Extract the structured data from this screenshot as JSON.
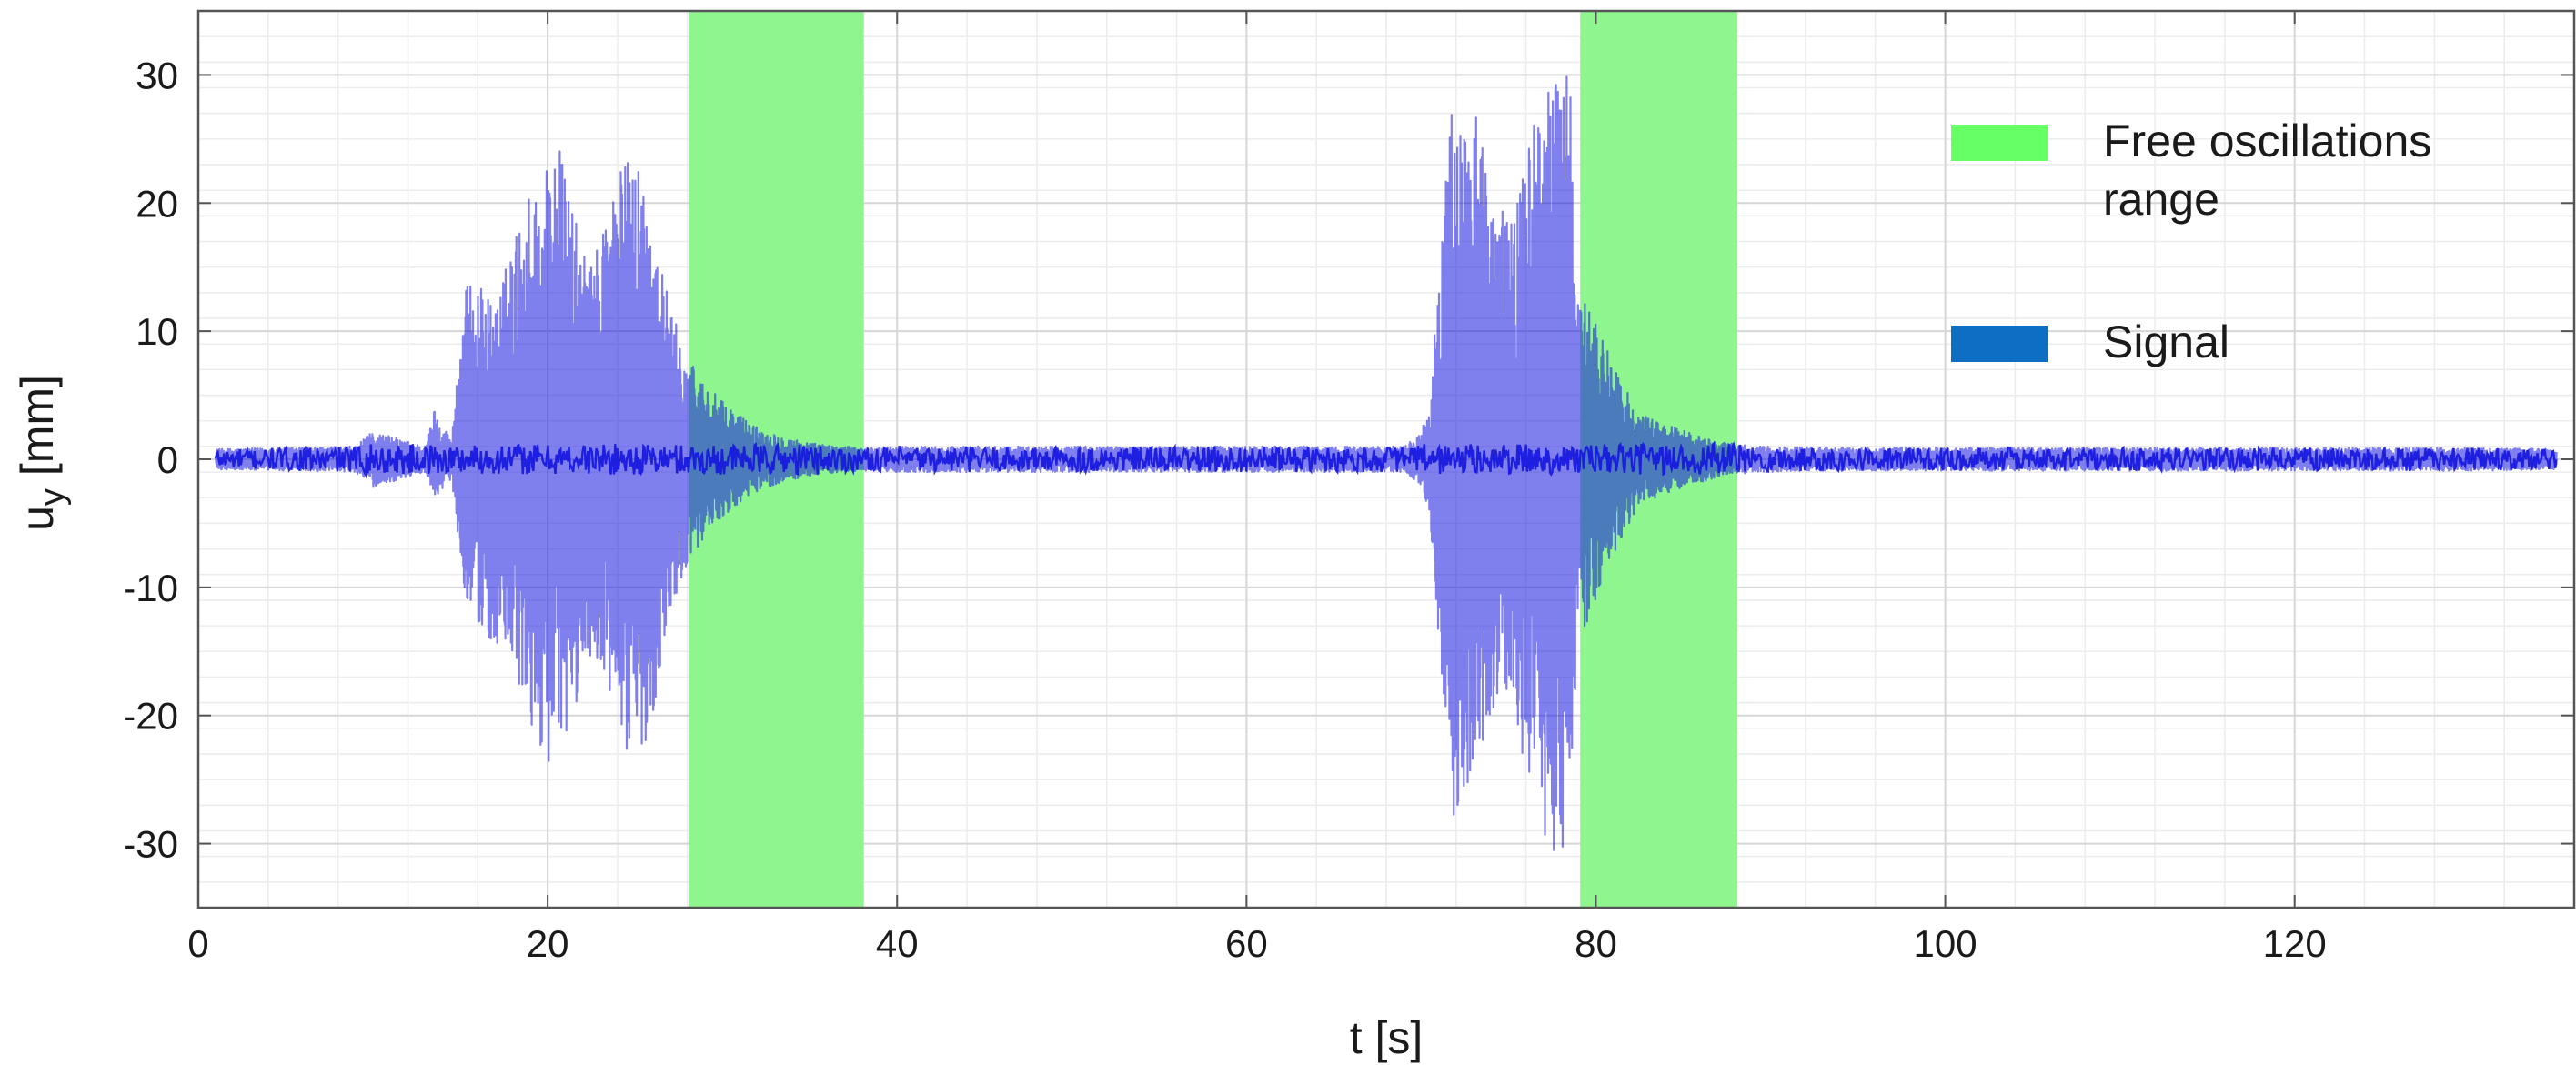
{
  "chart_data": {
    "type": "line",
    "title": "",
    "xlabel": "t [s]",
    "ylabel_main": "u",
    "ylabel_sub": "y",
    "ylabel_unit": " [mm]",
    "xlim": [
      0,
      136
    ],
    "ylim": [
      -35,
      35
    ],
    "x_ticks": [
      0,
      20,
      40,
      60,
      80,
      100,
      120
    ],
    "x_tick_labels": [
      "0",
      "20",
      "40",
      "60",
      "80",
      "100",
      "120"
    ],
    "y_ticks": [
      30,
      20,
      10,
      0,
      -10,
      -20,
      -30
    ],
    "y_tick_labels": [
      "30",
      "20",
      "10",
      "0",
      "-10",
      "-20",
      "-30"
    ],
    "grid": true,
    "minor_grid": true,
    "legend_position": "top-right",
    "legend": [
      {
        "label_lines": [
          "Free oscillations",
          "range"
        ],
        "color": "#66ff66"
      },
      {
        "label_lines": [
          "Signal"
        ],
        "color": "#0d6ec2"
      }
    ],
    "shaded_ranges": [
      {
        "name": "Free oscillations range",
        "x_start": 28.1,
        "x_end": 38.1,
        "color": "#8ff58f"
      },
      {
        "name": "Free oscillations range",
        "x_start": 79.1,
        "x_end": 88.1,
        "color": "#8ff58f"
      }
    ],
    "series": [
      {
        "name": "Signal",
        "color": "#1515e0",
        "envelope_t": [
          1,
          9,
          10,
          13,
          13.5,
          14.5,
          15.2,
          16,
          17,
          18,
          19,
          20,
          20.6,
          21.5,
          22.5,
          23.5,
          24.5,
          25.2,
          26,
          27,
          28,
          29,
          30,
          31,
          32,
          33,
          34,
          35,
          36,
          37,
          38,
          40,
          69,
          70,
          70.5,
          71,
          71.8,
          72.5,
          73,
          74,
          75,
          76,
          77,
          77.8,
          78.5,
          79,
          79.5,
          80.5,
          81.5,
          82.5,
          83.5,
          84.5,
          85.5,
          86.5,
          87.5,
          88,
          89,
          95,
          130,
          135
        ],
        "envelope_upper": [
          0.8,
          1.0,
          2.2,
          1.0,
          4.0,
          1.5,
          13.5,
          13.8,
          12,
          17,
          21,
          23.5,
          25,
          19,
          15,
          21,
          23.5,
          23.8,
          19,
          12,
          8,
          6,
          4.5,
          3.5,
          2.5,
          2,
          1.6,
          1.3,
          1.1,
          1.0,
          0.9,
          1.0,
          1.0,
          2.0,
          5,
          14,
          29,
          26,
          28,
          23,
          18,
          25,
          29,
          31,
          30,
          14,
          12,
          9,
          6,
          3.5,
          3,
          2.5,
          2,
          1.6,
          1.3,
          1.2,
          1.0,
          0.9,
          0.9,
          0.8
        ],
        "envelope_lower": [
          -0.8,
          -1.0,
          -2.2,
          -1.0,
          -3.0,
          -1.5,
          -10,
          -13.5,
          -14.5,
          -17,
          -21,
          -23.5,
          -25,
          -20,
          -15,
          -19,
          -23,
          -24,
          -20,
          -12,
          -8,
          -6,
          -4.5,
          -3.5,
          -2.5,
          -2,
          -1.6,
          -1.3,
          -1.1,
          -1.0,
          -0.9,
          -1.0,
          -1.0,
          -2.0,
          -5,
          -15,
          -28.5,
          -27,
          -24,
          -20,
          -18,
          -25,
          -29,
          -32,
          -28,
          -14,
          -13,
          -9,
          -6,
          -3.5,
          -3,
          -2.5,
          -2,
          -1.6,
          -1.3,
          -1.2,
          -1.0,
          -0.9,
          -0.9,
          -0.8
        ]
      }
    ]
  }
}
